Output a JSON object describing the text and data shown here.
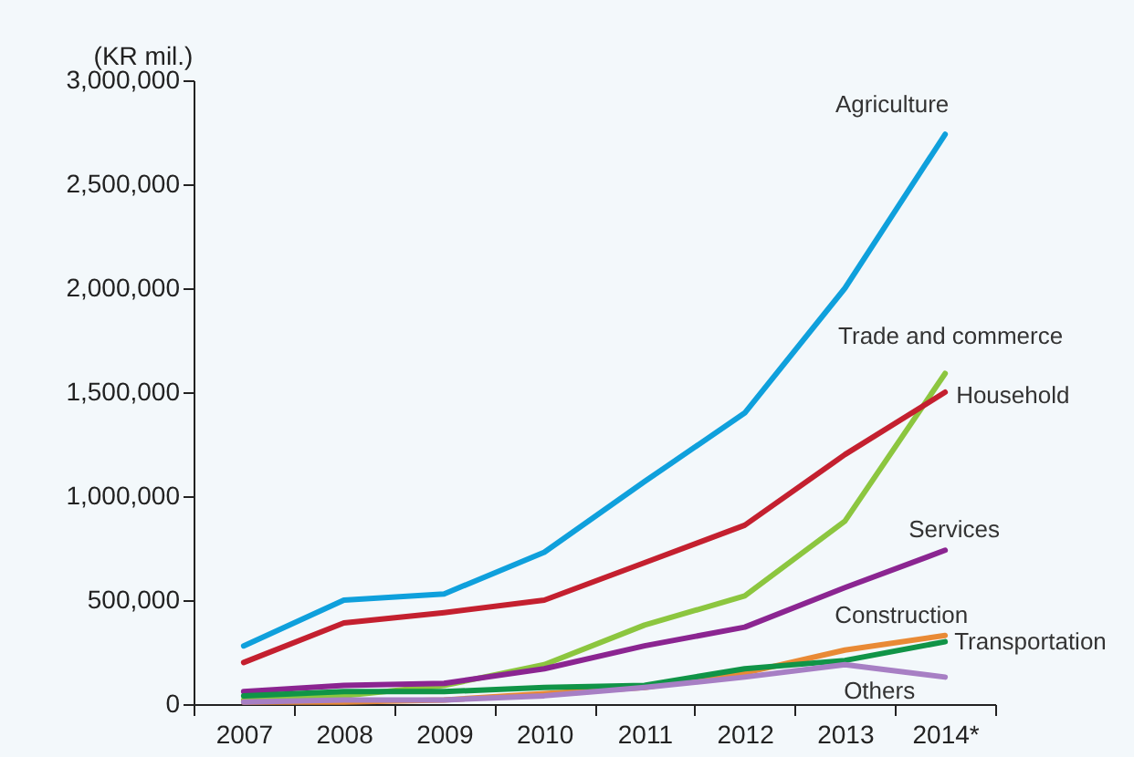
{
  "chart_data": {
    "type": "line",
    "ylabel": "(KR mil.)",
    "categories": [
      "2007",
      "2008",
      "2009",
      "2010",
      "2011",
      "2012",
      "2013",
      "2014*"
    ],
    "ylim": [
      0,
      3000000
    ],
    "yticks": [
      0,
      {
        "value": 500000,
        "label": "500,000"
      },
      {
        "value": 1000000,
        "label": "1,000,000"
      },
      {
        "value": 1500000,
        "label": "1,500,000"
      },
      {
        "value": 2000000,
        "label": "2,000,000"
      },
      {
        "value": 2500000,
        "label": "2,500,000"
      },
      {
        "value": 3000000,
        "label": "3,000,000"
      }
    ],
    "series": [
      {
        "name": "Agriculture",
        "color": "#0fa0dc",
        "values": [
          280000,
          500000,
          530000,
          730000,
          1070000,
          1400000,
          2000000,
          2740000
        ]
      },
      {
        "name": "Trade and commerce",
        "color": "#8cc63f",
        "values": [
          20000,
          40000,
          90000,
          190000,
          380000,
          520000,
          880000,
          1590000
        ]
      },
      {
        "name": "Household",
        "color": "#c4202f",
        "values": [
          200000,
          390000,
          440000,
          500000,
          680000,
          860000,
          1200000,
          1500000
        ]
      },
      {
        "name": "Services",
        "color": "#8b2591",
        "values": [
          60000,
          90000,
          100000,
          170000,
          280000,
          370000,
          560000,
          740000
        ]
      },
      {
        "name": "Construction",
        "color": "#e98a35",
        "values": [
          10000,
          10000,
          20000,
          50000,
          80000,
          150000,
          260000,
          330000
        ]
      },
      {
        "name": "Transportation",
        "color": "#109447",
        "values": [
          40000,
          60000,
          60000,
          80000,
          90000,
          170000,
          210000,
          300000
        ]
      },
      {
        "name": "Others",
        "color": "#a77fc4",
        "values": [
          10000,
          20000,
          20000,
          40000,
          80000,
          130000,
          190000,
          130000
        ]
      }
    ]
  }
}
